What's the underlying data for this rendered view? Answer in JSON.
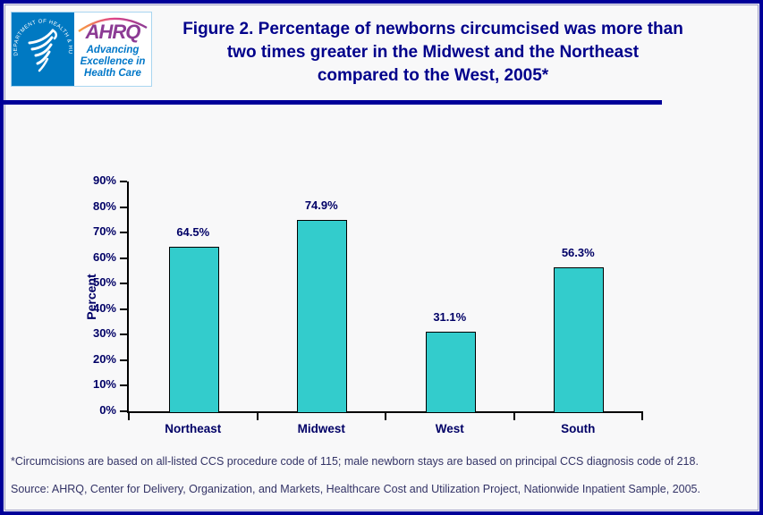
{
  "logo": {
    "hhs_circular_text": "DEPARTMENT OF HEALTH & HUMAN SERVICES • USA",
    "ahrq_acronym": "AHRQ",
    "tagline_lines": [
      "Advancing",
      "Excellence in",
      "Health Care"
    ]
  },
  "header": {
    "title_lines": [
      "Figure 2. Percentage of newborns circumcised was more than",
      "two times greater in the Midwest and the Northeast",
      "compared to the West, 2005*"
    ]
  },
  "chart_data": {
    "type": "bar",
    "title": "Figure 2. Percentage of newborns circumcised was more than two times greater in the Midwest and the Northeast compared to the West, 2005*",
    "categories": [
      "Northeast",
      "Midwest",
      "West",
      "South"
    ],
    "values": [
      64.5,
      74.9,
      31.1,
      56.3
    ],
    "value_labels": [
      "64.5%",
      "74.9%",
      "31.1%",
      "56.3%"
    ],
    "xlabel": "",
    "ylabel": "Percent",
    "ylim": [
      0,
      90
    ],
    "yticks": [
      0,
      10,
      20,
      30,
      40,
      50,
      60,
      70,
      80,
      90
    ],
    "ytick_labels": [
      "0%",
      "10%",
      "20%",
      "30%",
      "40%",
      "50%",
      "60%",
      "70%",
      "80%",
      "90%"
    ],
    "grid": "off",
    "legend": "none",
    "bar_color": "#33CCCC",
    "bar_border_color": "#000000",
    "text_color": "#000066"
  },
  "footnotes": {
    "note": "*Circumcisions are based on all-listed CCS procedure code of 115; male newborn stays are based on principal CCS diagnosis code of 218.",
    "source": "Source: AHRQ, Center for Delivery, Organization, and Markets, Healthcare Cost and Utilization Project, Nationwide Inpatient Sample, 2005."
  }
}
